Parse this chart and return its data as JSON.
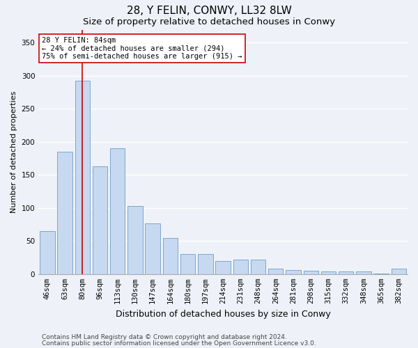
{
  "title1": "28, Y FELIN, CONWY, LL32 8LW",
  "title2": "Size of property relative to detached houses in Conwy",
  "xlabel": "Distribution of detached houses by size in Conwy",
  "ylabel": "Number of detached properties",
  "categories": [
    "46sqm",
    "63sqm",
    "80sqm",
    "96sqm",
    "113sqm",
    "130sqm",
    "147sqm",
    "164sqm",
    "180sqm",
    "197sqm",
    "214sqm",
    "231sqm",
    "248sqm",
    "264sqm",
    "281sqm",
    "298sqm",
    "315sqm",
    "332sqm",
    "348sqm",
    "365sqm",
    "382sqm"
  ],
  "values": [
    65,
    185,
    293,
    163,
    190,
    103,
    77,
    55,
    30,
    30,
    20,
    22,
    22,
    8,
    6,
    5,
    4,
    4,
    4,
    1,
    8
  ],
  "bar_color": "#c6d9f0",
  "bar_edge_color": "#7ca6cd",
  "highlight_bar_index": 2,
  "highlight_line_color": "#cc0000",
  "annotation_text": "28 Y FELIN: 84sqm\n← 24% of detached houses are smaller (294)\n75% of semi-detached houses are larger (915) →",
  "annotation_box_color": "#ffffff",
  "annotation_box_edge_color": "#cc0000",
  "ylim": [
    0,
    370
  ],
  "yticks": [
    0,
    50,
    100,
    150,
    200,
    250,
    300,
    350
  ],
  "footer1": "Contains HM Land Registry data © Crown copyright and database right 2024.",
  "footer2": "Contains public sector information licensed under the Open Government Licence v3.0.",
  "background_color": "#eef2f8",
  "grid_color": "#ffffff",
  "title1_fontsize": 11,
  "title2_fontsize": 9.5,
  "xlabel_fontsize": 9,
  "ylabel_fontsize": 8,
  "tick_fontsize": 7.5,
  "annotation_fontsize": 7.5,
  "footer_fontsize": 6.5
}
